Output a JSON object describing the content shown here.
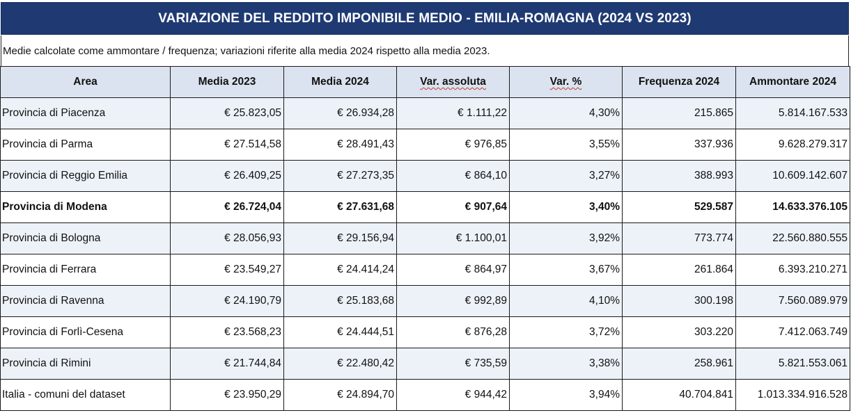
{
  "title": "VARIAZIONE DEL REDDITO IMPONIBILE MEDIO - EMILIA-ROMAGNA (2024 VS 2023)",
  "subtitle": "Medie calcolate come ammontare / frequenza; variazioni riferite alla media 2024 rispetto alla media 2023.",
  "columns": [
    "Area",
    "Media 2023",
    "Media 2024",
    "Var. assoluta",
    "Var. %",
    "Frequenza 2024",
    "Ammontare 2024"
  ],
  "rows": [
    {
      "area": "Provincia di Piacenza",
      "media2023": "€ 25.823,05",
      "media2024": "€ 26.934,28",
      "var_abs": "€ 1.111,22",
      "var_pct": "4,30%",
      "freq": "215.865",
      "amm": "5.814.167.533"
    },
    {
      "area": "Provincia di Parma",
      "media2023": "€ 27.514,58",
      "media2024": "€ 28.491,43",
      "var_abs": "€ 976,85",
      "var_pct": "3,55%",
      "freq": "337.936",
      "amm": "9.628.279.317"
    },
    {
      "area": "Provincia di Reggio Emilia",
      "media2023": "€ 26.409,25",
      "media2024": "€ 27.273,35",
      "var_abs": "€ 864,10",
      "var_pct": "3,27%",
      "freq": "388.993",
      "amm": "10.609.142.607"
    },
    {
      "area": "Provincia di Modena",
      "media2023": "€ 26.724,04",
      "media2024": "€ 27.631,68",
      "var_abs": "€ 907,64",
      "var_pct": "3,40%",
      "freq": "529.587",
      "amm": "14.633.376.105"
    },
    {
      "area": "Provincia di Bologna",
      "media2023": "€ 28.056,93",
      "media2024": "€ 29.156,94",
      "var_abs": "€ 1.100,01",
      "var_pct": "3,92%",
      "freq": "773.774",
      "amm": "22.560.880.555"
    },
    {
      "area": "Provincia di Ferrara",
      "media2023": "€ 23.549,27",
      "media2024": "€ 24.414,24",
      "var_abs": "€ 864,97",
      "var_pct": "3,67%",
      "freq": "261.864",
      "amm": "6.393.210.271"
    },
    {
      "area": "Provincia di Ravenna",
      "media2023": "€ 24.190,79",
      "media2024": "€ 25.183,68",
      "var_abs": "€ 992,89",
      "var_pct": "4,10%",
      "freq": "300.198",
      "amm": "7.560.089.979"
    },
    {
      "area": "Provincia di Forlì-Cesena",
      "media2023": "€ 23.568,23",
      "media2024": "€ 24.444,51",
      "var_abs": "€ 876,28",
      "var_pct": "3,72%",
      "freq": "303.220",
      "amm": "7.412.063.749"
    },
    {
      "area": "Provincia di Rimini",
      "media2023": "€ 21.744,84",
      "media2024": "€ 22.480,42",
      "var_abs": "€ 735,59",
      "var_pct": "3,38%",
      "freq": "258.961",
      "amm": "5.821.553.061"
    },
    {
      "area": "Italia - comuni del dataset",
      "media2023": "€ 23.950,29",
      "media2024": "€ 24.894,70",
      "var_abs": "€ 944,42",
      "var_pct": "3,94%",
      "freq": "40.704.841",
      "amm": "1.013.334.916.528"
    }
  ],
  "colors": {
    "title_bg": "#1f3a73",
    "header_bg": "#dbe3f0",
    "alt_row_bg": "#edf2f9"
  }
}
